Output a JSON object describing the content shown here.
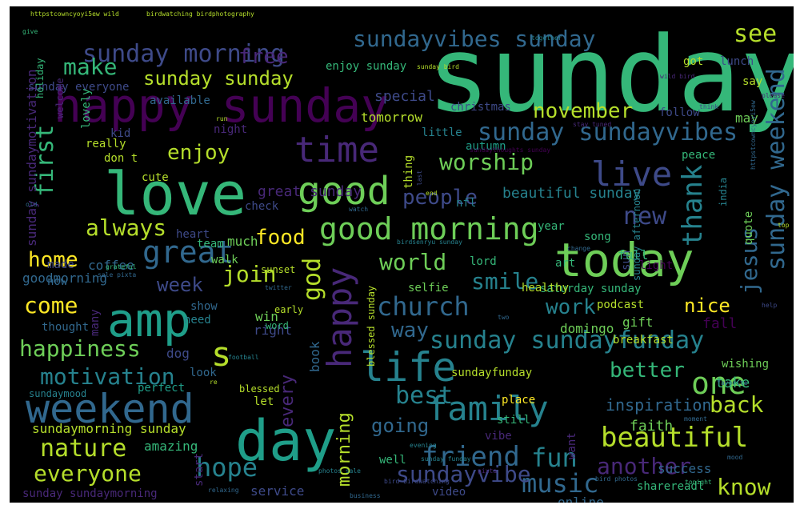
{
  "wordcloud": {
    "background": "#000000",
    "palette": {
      "purple": "#440154",
      "violet": "#482878",
      "indigo": "#3e4a89",
      "blue": "#31688e",
      "teal": "#26828e",
      "cyan": "#1f9e89",
      "green": "#35b779",
      "lime": "#6ece58",
      "yellow": "#b5de2b",
      "bright": "#fde725"
    },
    "words": [
      {
        "text": "sunday",
        "color": "#35b779"
      },
      {
        "text": "happy sunday",
        "color": "#440154"
      },
      {
        "text": "love",
        "color": "#35b779"
      },
      {
        "text": "amp",
        "color": "#1f9e89"
      },
      {
        "text": "day",
        "color": "#1f9e89"
      },
      {
        "text": "today",
        "color": "#6ece58"
      },
      {
        "text": "weekend",
        "color": "#31688e"
      },
      {
        "text": "life",
        "color": "#26828e"
      },
      {
        "text": "good",
        "color": "#6ece58"
      },
      {
        "text": "good morning",
        "color": "#6ece58"
      },
      {
        "text": "time",
        "color": "#482878"
      },
      {
        "text": "live",
        "color": "#3e4a89"
      },
      {
        "text": "family",
        "color": "#26828e"
      },
      {
        "text": "happy",
        "color": "#482878"
      },
      {
        "text": "sunday morning",
        "color": "#3e4a89"
      },
      {
        "text": "sundayvibes sunday",
        "color": "#31688e"
      },
      {
        "text": "sunday sundayvibes",
        "color": "#31688e"
      },
      {
        "text": "sunday sundayfunday",
        "color": "#26828e"
      },
      {
        "text": "beautiful",
        "color": "#b5de2b"
      },
      {
        "text": "friend",
        "color": "#31688e"
      },
      {
        "text": "one",
        "color": "#6ece58"
      },
      {
        "text": "best",
        "color": "#26828e"
      },
      {
        "text": "church",
        "color": "#31688e"
      },
      {
        "text": "great",
        "color": "#31688e"
      },
      {
        "text": "music",
        "color": "#31688e"
      },
      {
        "text": "fun",
        "color": "#26828e"
      },
      {
        "text": "hope",
        "color": "#26828e"
      },
      {
        "text": "nature",
        "color": "#b5de2b"
      },
      {
        "text": "everyone",
        "color": "#b5de2b"
      },
      {
        "text": "motivation",
        "color": "#26828e"
      },
      {
        "text": "happiness",
        "color": "#6ece58"
      },
      {
        "text": "s",
        "color": "#b5de2b"
      },
      {
        "text": "sundayvibe",
        "color": "#3e4a89"
      },
      {
        "text": "another",
        "color": "#482878"
      },
      {
        "text": "know",
        "color": "#b5de2b"
      },
      {
        "text": "back",
        "color": "#b5de2b"
      },
      {
        "text": "world",
        "color": "#6ece58"
      },
      {
        "text": "people",
        "color": "#3e4a89"
      },
      {
        "text": "worship",
        "color": "#6ece58"
      },
      {
        "text": "november",
        "color": "#b5de2b"
      },
      {
        "text": "enjoy",
        "color": "#b5de2b"
      },
      {
        "text": "food",
        "color": "#fde725"
      },
      {
        "text": "join",
        "color": "#b5de2b"
      },
      {
        "text": "make",
        "color": "#35b779"
      },
      {
        "text": "sunday sunday",
        "color": "#b5de2b"
      },
      {
        "text": "free",
        "color": "#482878"
      },
      {
        "text": "see",
        "color": "#b5de2b"
      },
      {
        "text": "new",
        "color": "#3e4a89"
      },
      {
        "text": "thank",
        "color": "#26828e"
      },
      {
        "text": "jesus",
        "color": "#31688e"
      },
      {
        "text": "sunday weekend",
        "color": "#31688e"
      },
      {
        "text": "always",
        "color": "#b5de2b"
      },
      {
        "text": "first",
        "color": "#35b779"
      },
      {
        "text": "home",
        "color": "#fde725"
      },
      {
        "text": "come",
        "color": "#fde725"
      },
      {
        "text": "week",
        "color": "#3e4a89"
      },
      {
        "text": "god",
        "color": "#b5de2b"
      },
      {
        "text": "smile",
        "color": "#26828e"
      },
      {
        "text": "work",
        "color": "#26828e"
      },
      {
        "text": "nice",
        "color": "#fde725"
      },
      {
        "text": "way",
        "color": "#31688e"
      },
      {
        "text": "going",
        "color": "#31688e"
      },
      {
        "text": "morning",
        "color": "#b5de2b"
      },
      {
        "text": "every",
        "color": "#482878"
      },
      {
        "text": "better",
        "color": "#35b779"
      },
      {
        "text": "inspiration",
        "color": "#31688e"
      },
      {
        "text": "special",
        "color": "#3e4a89"
      },
      {
        "text": "tomorrow",
        "color": "#b5de2b"
      },
      {
        "text": "available",
        "color": "#31688e"
      },
      {
        "text": "beautiful sunday",
        "color": "#26828e"
      },
      {
        "text": "great sunday",
        "color": "#482878"
      },
      {
        "text": "sunday sundaymotivation",
        "color": "#482878"
      },
      {
        "text": "sunday everyone",
        "color": "#3e4a89"
      },
      {
        "text": "enjoy sunday",
        "color": "#35b779"
      },
      {
        "text": "goodmorning",
        "color": "#31688e"
      },
      {
        "text": "coffee",
        "color": "#31688e"
      },
      {
        "text": "sundaymood",
        "color": "#26828e"
      },
      {
        "text": "perfect",
        "color": "#1f9e89"
      },
      {
        "text": "sundaymorning sunday",
        "color": "#b5de2b"
      },
      {
        "text": "sunday sundaymorning",
        "color": "#482878"
      },
      {
        "text": "amazing",
        "color": "#35b779"
      },
      {
        "text": "service",
        "color": "#3e4a89"
      },
      {
        "text": "video",
        "color": "#3e4a89"
      },
      {
        "text": "online",
        "color": "#31688e"
      },
      {
        "text": "sharereadl",
        "color": "#35b779"
      },
      {
        "text": "success",
        "color": "#31688e"
      },
      {
        "text": "faith",
        "color": "#6ece58"
      },
      {
        "text": "take",
        "color": "#35b779"
      },
      {
        "text": "wishing",
        "color": "#6ece58"
      },
      {
        "text": "fall",
        "color": "#440154"
      },
      {
        "text": "domingo",
        "color": "#6ece58"
      },
      {
        "text": "saturday sunday",
        "color": "#35b779"
      },
      {
        "text": "lord",
        "color": "#35b779"
      },
      {
        "text": "year",
        "color": "#35b779"
      },
      {
        "text": "art",
        "color": "#35b779"
      },
      {
        "text": "song",
        "color": "#35b779"
      },
      {
        "text": "sun",
        "color": "#3e4a89"
      },
      {
        "text": "full",
        "color": "#35b779"
      },
      {
        "text": "light",
        "color": "#440154"
      },
      {
        "text": "sunday afternoon",
        "color": "#26828e"
      },
      {
        "text": "india",
        "color": "#26828e"
      },
      {
        "text": "quote",
        "color": "#6ece58"
      },
      {
        "text": "peace",
        "color": "#35b779"
      },
      {
        "text": "follow",
        "color": "#3e4a89"
      },
      {
        "text": "may",
        "color": "#6ece58"
      },
      {
        "text": "got",
        "color": "#b5de2b"
      },
      {
        "text": "lunch",
        "color": "#3e4a89"
      },
      {
        "text": "say",
        "color": "#b5de2b"
      },
      {
        "text": "christmas",
        "color": "#3e4a89"
      },
      {
        "text": "autumn",
        "color": "#1f9e89"
      },
      {
        "text": "little",
        "color": "#26828e"
      },
      {
        "text": "thing",
        "color": "#b5de2b"
      },
      {
        "text": "nfl",
        "color": "#26828e"
      },
      {
        "text": "really",
        "color": "#b5de2b"
      },
      {
        "text": "kid",
        "color": "#3e4a89"
      },
      {
        "text": "night",
        "color": "#482878"
      },
      {
        "text": "don t",
        "color": "#b5de2b"
      },
      {
        "text": "cute",
        "color": "#b5de2b"
      },
      {
        "text": "lovely",
        "color": "#35b779"
      },
      {
        "text": "welcome",
        "color": "#482878"
      },
      {
        "text": "holiday",
        "color": "#35b779"
      },
      {
        "text": "check",
        "color": "#3e4a89"
      },
      {
        "text": "heart",
        "color": "#3e4a89"
      },
      {
        "text": "team",
        "color": "#35b779"
      },
      {
        "text": "much",
        "color": "#6ece58"
      },
      {
        "text": "made",
        "color": "#3e4a89"
      },
      {
        "text": "now",
        "color": "#31688e"
      },
      {
        "text": "walk",
        "color": "#6ece58"
      },
      {
        "text": "show",
        "color": "#31688e"
      },
      {
        "text": "need",
        "color": "#26828e"
      },
      {
        "text": "win",
        "color": "#6ece58"
      },
      {
        "text": "right",
        "color": "#3e4a89"
      },
      {
        "text": "early",
        "color": "#b5de2b"
      },
      {
        "text": "sunset",
        "color": "#b5de2b"
      },
      {
        "text": "selfie",
        "color": "#6ece58"
      },
      {
        "text": "healthy",
        "color": "#b5de2b"
      },
      {
        "text": "podcast",
        "color": "#b5de2b"
      },
      {
        "text": "gift",
        "color": "#6ece58"
      },
      {
        "text": "breakfast",
        "color": "#b5de2b"
      },
      {
        "text": "sundayfunday",
        "color": "#b5de2b"
      },
      {
        "text": "place",
        "color": "#fde725"
      },
      {
        "text": "still",
        "color": "#35b779"
      },
      {
        "text": "well",
        "color": "#35b779"
      },
      {
        "text": "vibe",
        "color": "#482878"
      },
      {
        "text": "want",
        "color": "#482878"
      },
      {
        "text": "book",
        "color": "#31688e"
      },
      {
        "text": "dog",
        "color": "#3e4a89"
      },
      {
        "text": "word",
        "color": "#35b779"
      },
      {
        "text": "look",
        "color": "#31688e"
      },
      {
        "text": "thought",
        "color": "#31688e"
      },
      {
        "text": "many",
        "color": "#482878"
      },
      {
        "text": "let",
        "color": "#b5de2b"
      },
      {
        "text": "blessed",
        "color": "#b5de2b"
      },
      {
        "text": "start",
        "color": "#482878"
      },
      {
        "text": "blessed sunday",
        "color": "#b5de2b"
      },
      {
        "text": "httpstcowncyoyi5ew wild",
        "color": "#b5de2b"
      },
      {
        "text": "birdwatching birdphotography",
        "color": "#b5de2b"
      },
      {
        "text": "httpstcowncyoyi5ew",
        "color": "#31688e"
      },
      {
        "text": "wild bird",
        "color": "#482878"
      },
      {
        "text": "together",
        "color": "#26828e"
      },
      {
        "text": "sunday bird",
        "color": "#b5de2b"
      },
      {
        "text": "birdsenryu sunday",
        "color": "#26828e"
      },
      {
        "text": "sundaythoughts sunday",
        "color": "#440154"
      },
      {
        "text": "stay tuned",
        "color": "#482878"
      },
      {
        "text": "sunday funday",
        "color": "#26828e"
      },
      {
        "text": "photos sale",
        "color": "#26828e"
      },
      {
        "text": "sale pixta",
        "color": "#31688e"
      },
      {
        "text": "pixta",
        "color": "#482878"
      },
      {
        "text": "bird birdwatching",
        "color": "#3e4a89"
      },
      {
        "text": "bird photos",
        "color": "#31688e"
      },
      {
        "text": "twitter",
        "color": "#31688e"
      },
      {
        "text": "football",
        "color": "#26828e"
      },
      {
        "text": "relaxing",
        "color": "#31688e"
      },
      {
        "text": "business",
        "color": "#31688e"
      },
      {
        "text": "evening",
        "color": "#26828e"
      },
      {
        "text": "favorite",
        "color": "#31688e"
      },
      {
        "text": "mood",
        "color": "#31688e"
      },
      {
        "text": "moment",
        "color": "#31688e"
      },
      {
        "text": "tonight",
        "color": "#35b779"
      },
      {
        "text": "help",
        "color": "#3e4a89"
      },
      {
        "text": "two",
        "color": "#31688e"
      },
      {
        "text": "change",
        "color": "#31688e"
      },
      {
        "text": "watch",
        "color": "#31688e"
      },
      {
        "text": "think",
        "color": "#3e4a89"
      },
      {
        "text": "please",
        "color": "#482878"
      },
      {
        "text": "grateful",
        "color": "#35b779"
      },
      {
        "text": "give",
        "color": "#35b779"
      },
      {
        "text": "old",
        "color": "#31688e"
      },
      {
        "text": "run",
        "color": "#b5de2b"
      },
      {
        "text": "last",
        "color": "#3e4a89"
      },
      {
        "text": "end",
        "color": "#b5de2b"
      },
      {
        "text": "re",
        "color": "#b5de2b"
      },
      {
        "text": "top",
        "color": "#b5de2b"
      }
    ]
  }
}
